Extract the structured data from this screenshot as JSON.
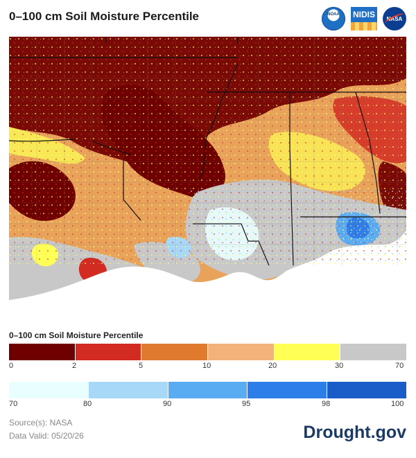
{
  "header": {
    "title": "0–100 cm Soil Moisture Percentile"
  },
  "logos": [
    {
      "name": "noaa-logo",
      "text": "NOAA"
    },
    {
      "name": "nidis-logo",
      "text": "NIDIS"
    },
    {
      "name": "nasa-logo",
      "text": "NASA"
    }
  ],
  "map": {
    "legend_title": "0–100 cm Soil Moisture Percentile",
    "dry_scale": {
      "colors": [
        "#6e0000",
        "#d22c22",
        "#e07a2e",
        "#f3b27a",
        "#ffff55",
        "#c8c8c8"
      ],
      "ticks": [
        "0",
        "2",
        "5",
        "10",
        "20",
        "30",
        "70"
      ]
    },
    "wet_scale": {
      "colors": [
        "#e8feff",
        "#a8d8f8",
        "#5aacf2",
        "#2d7ee8",
        "#1a5cc8"
      ],
      "ticks": [
        "70",
        "80",
        "90",
        "95",
        "98",
        "100"
      ]
    }
  },
  "footer": {
    "source": "Source(s): NASA",
    "valid": "Data Valid: 05/20/26",
    "brand": "Drought.gov"
  }
}
